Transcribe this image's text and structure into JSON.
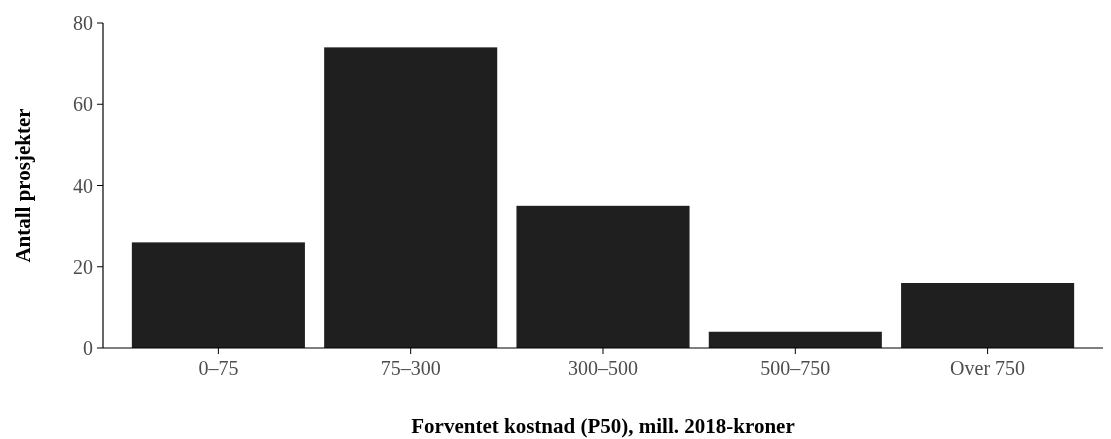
{
  "chart_data": {
    "type": "bar",
    "xlabel": "Forventet kostnad (P50), mill. 2018-kroner",
    "ylabel": "Antall prosjekter",
    "categories": [
      "0–75",
      "75–300",
      "300–500",
      "500–750",
      "Over 750"
    ],
    "values": [
      26,
      74,
      35,
      4,
      16
    ],
    "color": "#1f1f1f",
    "ylim": [
      0,
      80
    ],
    "yticks": [
      0,
      20,
      40,
      60,
      80
    ],
    "grid": false
  }
}
